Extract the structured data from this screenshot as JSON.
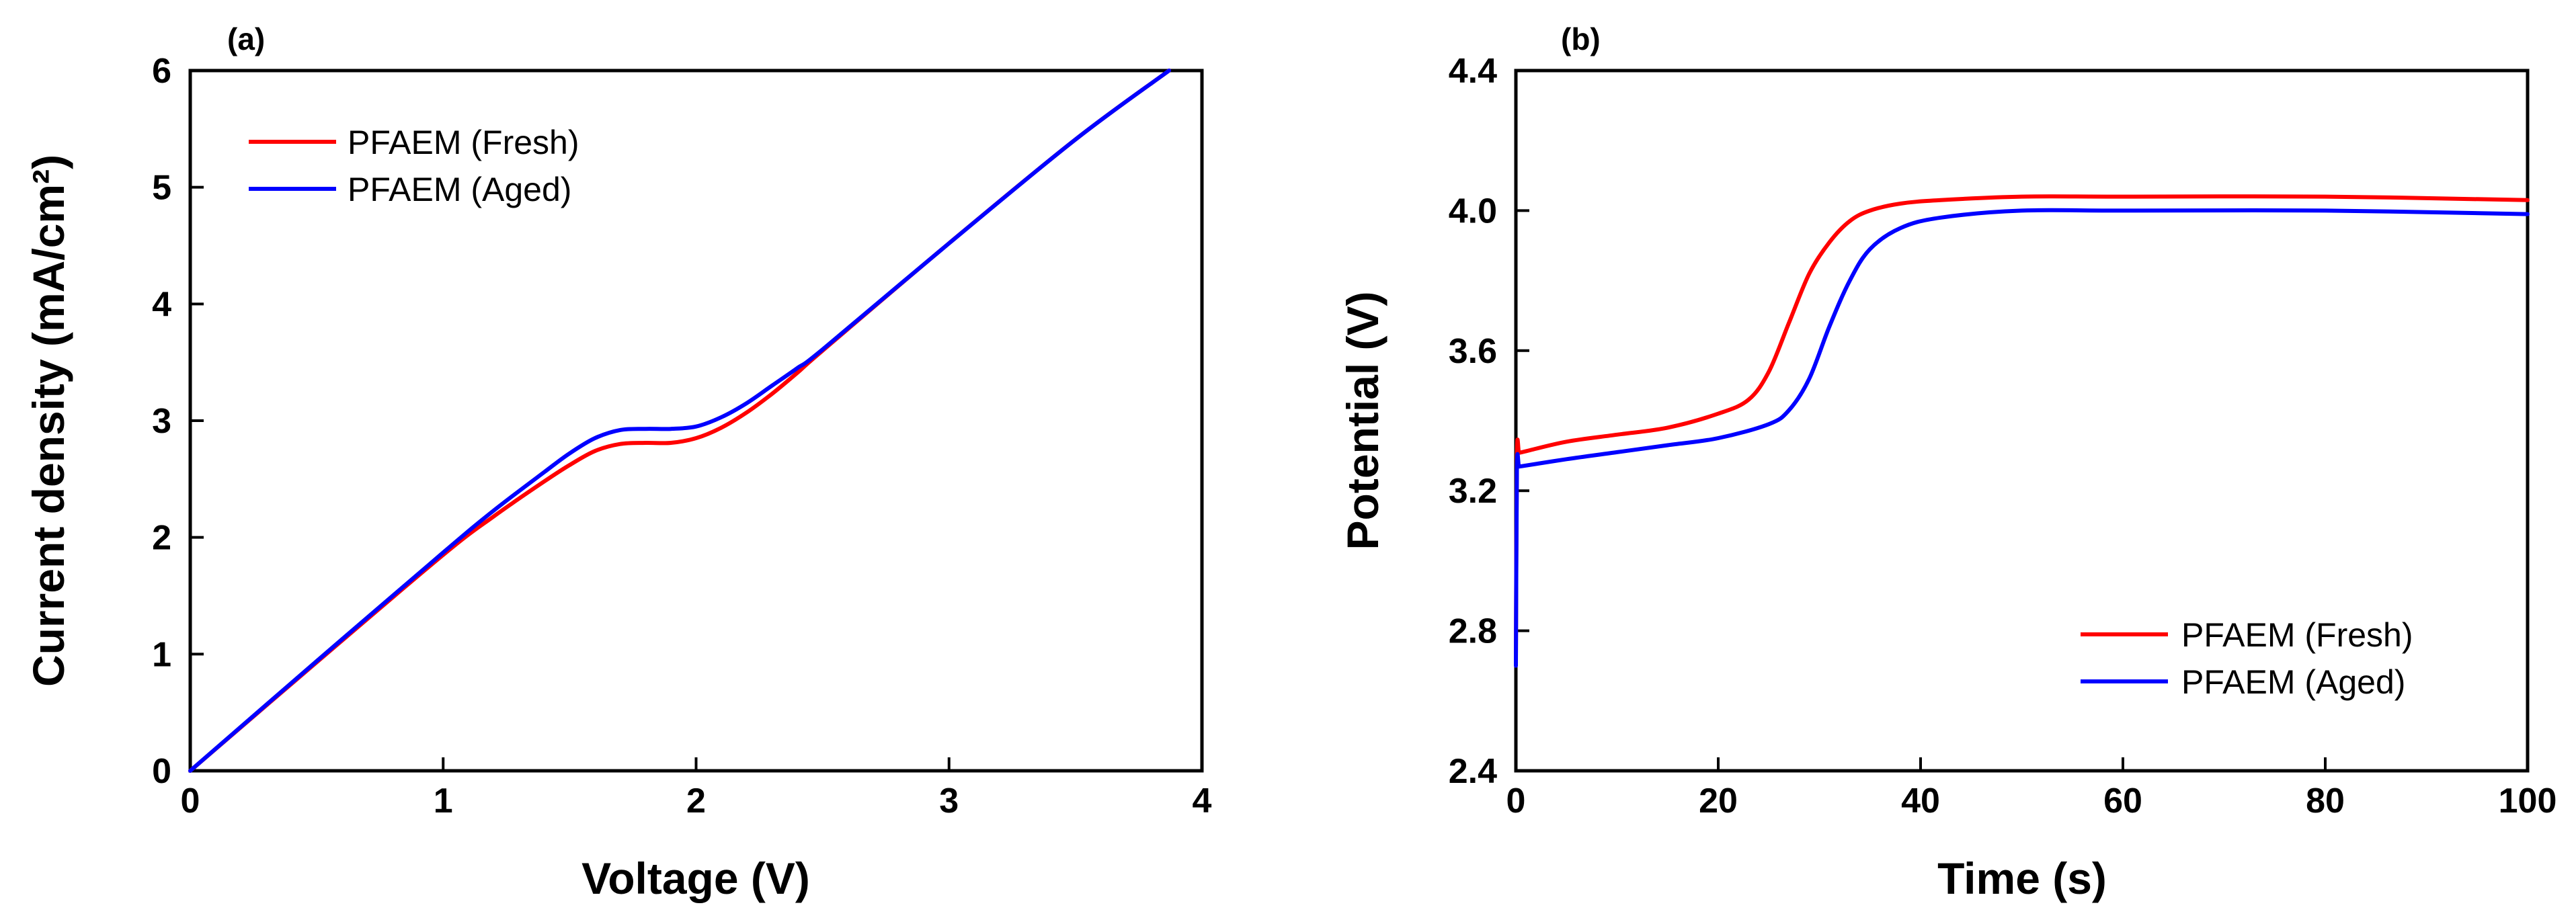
{
  "chart_data": [
    {
      "panel": "(a)",
      "type": "line",
      "xlabel": "Voltage (V)",
      "ylabel": "Current density (mA/cm²)",
      "xlim": [
        0,
        4
      ],
      "ylim": [
        0,
        6
      ],
      "xticks": [
        "0",
        "1",
        "2",
        "3",
        "4"
      ],
      "yticks": [
        "0",
        "1",
        "2",
        "3",
        "4",
        "5",
        "6"
      ],
      "legend_position": "top-left",
      "series": [
        {
          "name": "PFAEM (Fresh)",
          "color": "#ff0000",
          "x": [
            0,
            0.5,
            1.0,
            1.2,
            1.4,
            1.5,
            1.6,
            1.7,
            1.8,
            1.9,
            2.0,
            2.1,
            2.2,
            2.3,
            2.4,
            2.5,
            3.0,
            3.5,
            3.87
          ],
          "y": [
            0,
            0.93,
            1.85,
            2.18,
            2.48,
            2.62,
            2.74,
            2.8,
            2.81,
            2.81,
            2.85,
            2.94,
            3.07,
            3.23,
            3.41,
            3.6,
            4.52,
            5.41,
            6.0
          ]
        },
        {
          "name": "PFAEM (Aged)",
          "color": "#0000ff",
          "x": [
            0,
            0.5,
            1.0,
            1.2,
            1.4,
            1.5,
            1.6,
            1.7,
            1.8,
            1.9,
            2.0,
            2.1,
            2.2,
            2.3,
            2.4,
            2.5,
            3.0,
            3.5,
            3.87
          ],
          "y": [
            0,
            0.94,
            1.87,
            2.23,
            2.56,
            2.72,
            2.85,
            2.92,
            2.93,
            2.93,
            2.95,
            3.03,
            3.15,
            3.3,
            3.45,
            3.61,
            4.52,
            5.41,
            6.0
          ]
        }
      ]
    },
    {
      "panel": "(b)",
      "type": "line",
      "xlabel": "Time (s)",
      "ylabel": "Potential (V)",
      "xlim": [
        0,
        100
      ],
      "ylim": [
        2.4,
        4.4
      ],
      "xticks": [
        "0",
        "20",
        "40",
        "60",
        "80",
        "100"
      ],
      "yticks": [
        "2.4",
        "2.8",
        "3.2",
        "3.6",
        "4.0",
        "4.4"
      ],
      "legend_position": "bottom-right",
      "series": [
        {
          "name": "PFAEM (Fresh)",
          "color": "#ff0000",
          "x": [
            0,
            0.1,
            0.3,
            0.6,
            5,
            10,
            15,
            20,
            23,
            25,
            27,
            29,
            31,
            33,
            35,
            38,
            42,
            50,
            60,
            80,
            100
          ],
          "y": [
            2.72,
            3.3,
            3.31,
            3.31,
            3.34,
            3.36,
            3.38,
            3.42,
            3.46,
            3.54,
            3.68,
            3.82,
            3.91,
            3.97,
            4.0,
            4.02,
            4.03,
            4.04,
            4.04,
            4.04,
            4.03
          ]
        },
        {
          "name": "PFAEM (Aged)",
          "color": "#0000ff",
          "x": [
            0,
            0.1,
            0.3,
            0.6,
            5,
            10,
            15,
            20,
            25,
            27,
            29,
            31,
            33,
            35,
            38,
            42,
            50,
            60,
            80,
            100
          ],
          "y": [
            2.7,
            3.26,
            3.27,
            3.27,
            3.29,
            3.31,
            3.33,
            3.35,
            3.39,
            3.43,
            3.52,
            3.67,
            3.8,
            3.89,
            3.95,
            3.98,
            4.0,
            4.0,
            4.0,
            3.99
          ]
        }
      ]
    }
  ]
}
